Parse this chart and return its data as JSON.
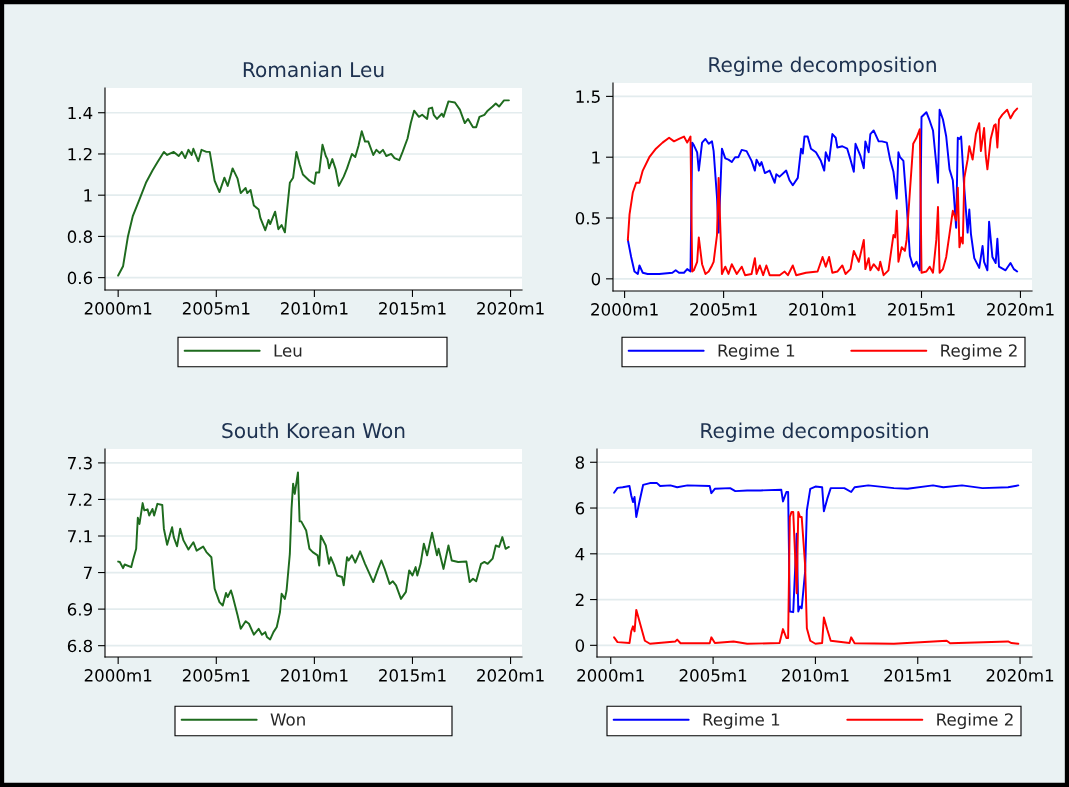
{
  "chart_data": [
    {
      "type": "line",
      "title": "Romanian Leu",
      "xlim": [
        "1999-05",
        "2020-08"
      ],
      "ylim": [
        0.54,
        1.52
      ],
      "xticks": [
        {
          "value": "2000-01",
          "label": "2000m1"
        },
        {
          "value": "2005-01",
          "label": "2005m1"
        },
        {
          "value": "2010-01",
          "label": "2010m1"
        },
        {
          "value": "2015-01",
          "label": "2015m1"
        },
        {
          "value": "2020-01",
          "label": "2020m1"
        }
      ],
      "yticks": [
        0.6,
        0.8,
        1,
        1.2,
        1.4
      ],
      "grid": "y",
      "legend": "bottom",
      "series": [
        {
          "name": "Leu",
          "color": "#1e6b1e",
          "x": [
            "2000-01",
            "2000-04",
            "2000-07",
            "2000-10",
            "2001-02",
            "2001-06",
            "2001-10",
            "2002-01",
            "2002-05",
            "2002-07",
            "2002-11",
            "2003-02",
            "2003-04",
            "2003-06",
            "2003-08",
            "2003-10",
            "2003-11",
            "2004-02",
            "2004-04",
            "2004-07",
            "2004-09",
            "2004-12",
            "2005-03",
            "2005-06",
            "2005-08",
            "2005-11",
            "2006-02",
            "2006-04",
            "2006-07",
            "2006-08",
            "2006-10",
            "2006-12",
            "2007-03",
            "2007-04",
            "2007-07",
            "2007-09",
            "2007-10",
            "2008-01",
            "2008-03",
            "2008-05",
            "2008-07",
            "2008-08",
            "2008-10",
            "2008-12",
            "2009-02",
            "2009-04",
            "2009-06",
            "2009-10",
            "2010-01",
            "2010-02",
            "2010-04",
            "2010-06",
            "2010-08",
            "2010-09",
            "2010-10",
            "2010-12",
            "2011-02",
            "2011-04",
            "2011-07",
            "2011-09",
            "2011-12",
            "2012-02",
            "2012-04",
            "2012-06",
            "2012-08",
            "2012-10",
            "2013-01",
            "2013-03",
            "2013-05",
            "2013-07",
            "2013-09",
            "2013-12",
            "2014-02",
            "2014-05",
            "2014-07",
            "2014-10",
            "2014-12",
            "2015-02",
            "2015-05",
            "2015-07",
            "2015-10",
            "2015-11",
            "2016-01",
            "2016-02",
            "2016-04",
            "2016-07",
            "2016-08",
            "2016-11",
            "2017-03",
            "2017-06",
            "2017-09",
            "2017-11",
            "2018-02",
            "2018-04",
            "2018-06",
            "2018-09",
            "2018-11",
            "2019-02",
            "2019-04",
            "2019-06",
            "2019-09",
            "2019-12"
          ],
          "values": [
            0.61,
            0.655,
            0.8,
            0.9,
            0.98,
            1.06,
            1.12,
            1.16,
            1.21,
            1.195,
            1.21,
            1.19,
            1.21,
            1.18,
            1.22,
            1.195,
            1.225,
            1.165,
            1.22,
            1.21,
            1.21,
            1.07,
            1.015,
            1.085,
            1.045,
            1.13,
            1.08,
            1.01,
            1.035,
            1.01,
            1.025,
            0.95,
            0.93,
            0.89,
            0.83,
            0.88,
            0.86,
            0.92,
            0.835,
            0.855,
            0.82,
            0.905,
            1.06,
            1.085,
            1.21,
            1.15,
            1.1,
            1.07,
            1.055,
            1.11,
            1.11,
            1.245,
            1.19,
            1.175,
            1.13,
            1.175,
            1.125,
            1.045,
            1.09,
            1.13,
            1.2,
            1.185,
            1.24,
            1.31,
            1.26,
            1.26,
            1.195,
            1.22,
            1.205,
            1.22,
            1.19,
            1.2,
            1.18,
            1.17,
            1.21,
            1.275,
            1.35,
            1.41,
            1.38,
            1.39,
            1.37,
            1.42,
            1.425,
            1.39,
            1.37,
            1.395,
            1.38,
            1.455,
            1.45,
            1.415,
            1.35,
            1.37,
            1.33,
            1.33,
            1.38,
            1.39,
            1.41,
            1.43,
            1.445,
            1.43,
            1.46,
            1.46
          ]
        }
      ]
    },
    {
      "type": "line",
      "title": "Regime decomposition",
      "xlim": [
        "1999-06",
        "2020-08"
      ],
      "ylim": [
        -0.1,
        1.61
      ],
      "xticks": [
        {
          "value": "2000-01",
          "label": "2000m1"
        },
        {
          "value": "2005-01",
          "label": "2005m1"
        },
        {
          "value": "2010-01",
          "label": "2010m1"
        },
        {
          "value": "2015-01",
          "label": "2015m1"
        },
        {
          "value": "2020-01",
          "label": "2020m1"
        }
      ],
      "yticks": [
        0,
        0.5,
        1,
        1.5
      ],
      "grid": "y",
      "legend": "bottom",
      "series": [
        {
          "name": "Regime 1",
          "color": "#0000ff",
          "x": [
            "2000-03",
            "2000-05",
            "2000-07",
            "2000-09",
            "2000-10",
            "2000-12",
            "2001-03",
            "2001-10",
            "2002-06",
            "2002-08",
            "2002-10",
            "2003-01",
            "2003-03",
            "2003-05",
            "2003-06",
            "2003-07",
            "2003-09",
            "2003-10",
            "2003-12",
            "2004-02",
            "2004-04",
            "2004-06",
            "2004-07",
            "2004-09",
            "2004-10",
            "2004-12",
            "2005-02",
            "2005-04",
            "2005-06",
            "2005-08",
            "2005-10",
            "2005-12",
            "2006-03",
            "2006-06",
            "2006-08",
            "2006-09",
            "2006-11",
            "2006-12",
            "2007-02",
            "2007-05",
            "2007-08",
            "2007-09",
            "2007-11",
            "2008-03",
            "2008-05",
            "2008-07",
            "2008-10",
            "2008-12",
            "2009-01",
            "2009-02",
            "2009-04",
            "2009-06",
            "2009-09",
            "2009-12",
            "2010-02",
            "2010-03",
            "2010-05",
            "2010-07",
            "2010-09",
            "2010-10",
            "2011-01",
            "2011-04",
            "2011-06",
            "2011-08",
            "2011-09",
            "2011-12",
            "2012-02",
            "2012-03",
            "2012-05",
            "2012-06",
            "2012-08",
            "2012-11",
            "2013-01",
            "2013-04",
            "2013-06",
            "2013-08",
            "2013-10",
            "2013-11",
            "2013-12",
            "2014-02",
            "2014-04",
            "2014-06",
            "2014-08",
            "2014-10",
            "2014-12",
            "2015-01",
            "2015-04",
            "2015-06",
            "2015-08",
            "2015-10",
            "2015-11",
            "2015-12",
            "2016-02",
            "2016-04",
            "2016-06",
            "2016-08",
            "2016-10",
            "2016-11",
            "2016-12",
            "2017-01",
            "2017-03",
            "2017-05",
            "2017-06",
            "2017-07",
            "2017-09",
            "2017-12",
            "2018-02",
            "2018-03",
            "2018-05",
            "2018-06",
            "2018-08",
            "2018-10",
            "2018-11",
            "2018-12",
            "2019-04",
            "2019-07",
            "2019-09",
            "2019-11"
          ],
          "values": [
            0.32,
            0.18,
            0.06,
            0.04,
            0.11,
            0.05,
            0.04,
            0.04,
            0.05,
            0.07,
            0.05,
            0.05,
            0.08,
            0.06,
            1.12,
            1.1,
            1.04,
            0.89,
            1.12,
            1.15,
            1.11,
            1.13,
            1.05,
            0.67,
            0.38,
            1.07,
            0.99,
            0.98,
            0.96,
            1.0,
            1.0,
            1.06,
            1.05,
            0.97,
            0.89,
            0.98,
            0.93,
            0.96,
            0.87,
            0.89,
            0.79,
            0.86,
            0.84,
            0.89,
            0.81,
            0.77,
            0.83,
            1.07,
            1.03,
            1.17,
            1.17,
            1.07,
            1.04,
            0.97,
            0.89,
            1.04,
            0.97,
            1.19,
            1.16,
            1.08,
            1.09,
            1.07,
            0.98,
            0.88,
            1.11,
            1.01,
            0.91,
            1.13,
            1.04,
            1.19,
            1.22,
            1.13,
            1.13,
            1.12,
            0.98,
            0.88,
            0.66,
            1.04,
            1.0,
            0.97,
            0.62,
            0.19,
            0.1,
            0.14,
            0.07,
            1.33,
            1.37,
            1.3,
            1.22,
            0.94,
            0.79,
            1.39,
            1.31,
            1.17,
            0.9,
            0.81,
            0.42,
            1.16,
            1.15,
            1.17,
            0.74,
            0.38,
            0.57,
            0.37,
            0.17,
            0.09,
            0.27,
            0.14,
            0.07,
            0.47,
            0.18,
            0.13,
            0.33,
            0.1,
            0.07,
            0.13,
            0.08,
            0.06
          ]
        },
        {
          "name": "Regime 2",
          "color": "#ff0000",
          "x": [
            "2000-03",
            "2000-04",
            "2000-06",
            "2000-08",
            "2000-10",
            "2000-12",
            "2001-04",
            "2001-08",
            "2001-12",
            "2002-04",
            "2002-07",
            "2002-10",
            "2003-01",
            "2003-03",
            "2003-05",
            "2003-06",
            "2003-07",
            "2003-09",
            "2003-10",
            "2003-12",
            "2004-02",
            "2004-04",
            "2004-06",
            "2004-07",
            "2004-09",
            "2004-10",
            "2004-12",
            "2005-02",
            "2005-04",
            "2005-06",
            "2005-09",
            "2005-12",
            "2006-02",
            "2006-06",
            "2006-08",
            "2006-09",
            "2006-11",
            "2007-01",
            "2007-03",
            "2007-05",
            "2007-11",
            "2008-02",
            "2008-04",
            "2008-07",
            "2008-09",
            "2009-03",
            "2009-10",
            "2010-01",
            "2010-03",
            "2010-05",
            "2010-07",
            "2010-10",
            "2011-01",
            "2011-03",
            "2011-06",
            "2011-08",
            "2011-11",
            "2012-02",
            "2012-03",
            "2012-05",
            "2012-06",
            "2012-08",
            "2012-11",
            "2012-12",
            "2013-02",
            "2013-05",
            "2013-08",
            "2013-09",
            "2013-10",
            "2013-11",
            "2014-01",
            "2014-03",
            "2014-04",
            "2014-06",
            "2014-08",
            "2014-10",
            "2014-12",
            "2015-01",
            "2015-04",
            "2015-06",
            "2015-08",
            "2015-10",
            "2015-11",
            "2015-12",
            "2016-02",
            "2016-04",
            "2016-06",
            "2016-08",
            "2016-10",
            "2016-11",
            "2016-12",
            "2017-01",
            "2017-02",
            "2017-03",
            "2017-05",
            "2017-06",
            "2017-08",
            "2017-10",
            "2017-12",
            "2018-01",
            "2018-03",
            "2018-04",
            "2018-05",
            "2018-07",
            "2018-09",
            "2018-10",
            "2018-11",
            "2018-12",
            "2019-02",
            "2019-05",
            "2019-07",
            "2019-09",
            "2019-11"
          ],
          "values": [
            0.32,
            0.53,
            0.71,
            0.79,
            0.79,
            0.89,
            1.0,
            1.07,
            1.12,
            1.16,
            1.13,
            1.15,
            1.17,
            1.12,
            1.17,
            0.06,
            0.07,
            0.14,
            0.34,
            0.12,
            0.04,
            0.06,
            0.11,
            0.14,
            0.36,
            0.83,
            0.04,
            0.1,
            0.04,
            0.12,
            0.04,
            0.1,
            0.03,
            0.04,
            0.17,
            0.04,
            0.11,
            0.03,
            0.11,
            0.03,
            0.03,
            0.06,
            0.03,
            0.11,
            0.03,
            0.05,
            0.06,
            0.18,
            0.1,
            0.18,
            0.05,
            0.06,
            0.11,
            0.04,
            0.08,
            0.23,
            0.14,
            0.32,
            0.08,
            0.17,
            0.07,
            0.12,
            0.07,
            0.14,
            0.03,
            0.07,
            0.36,
            0.34,
            0.56,
            0.14,
            0.26,
            0.23,
            0.32,
            0.72,
            1.11,
            1.16,
            1.23,
            0.05,
            0.06,
            0.1,
            0.05,
            0.32,
            0.59,
            0.05,
            0.08,
            0.18,
            0.37,
            0.56,
            0.48,
            0.75,
            0.26,
            0.34,
            0.29,
            0.83,
            0.98,
            1.09,
            0.98,
            1.19,
            1.28,
            1.05,
            1.24,
            1.01,
            0.9,
            1.15,
            1.26,
            1.27,
            1.08,
            1.31,
            1.35,
            1.39,
            1.32,
            1.37,
            1.4
          ]
        }
      ]
    },
    {
      "type": "line",
      "title": "South Korean Won",
      "xlim": [
        "1999-05",
        "2020-08"
      ],
      "ylim": [
        6.769,
        7.338
      ],
      "xticks": [
        {
          "value": "2000-01",
          "label": "2000m1"
        },
        {
          "value": "2005-01",
          "label": "2005m1"
        },
        {
          "value": "2010-01",
          "label": "2010m1"
        },
        {
          "value": "2015-01",
          "label": "2015m1"
        },
        {
          "value": "2020-01",
          "label": "2020m1"
        }
      ],
      "yticks": [
        6.8,
        6.9,
        7,
        7.1,
        7.2,
        7.3
      ],
      "grid": "y",
      "legend": "bottom",
      "series": [
        {
          "name": "Won",
          "color": "#1e6b1e",
          "x": [
            "2000-01",
            "2000-02",
            "2000-04",
            "2000-05",
            "2000-09",
            "2000-10",
            "2000-12",
            "2001-01",
            "2001-02",
            "2001-04",
            "2001-05",
            "2001-07",
            "2001-08",
            "2001-10",
            "2001-11",
            "2002-01",
            "2002-04",
            "2002-05",
            "2002-07",
            "2002-10",
            "2002-11",
            "2003-01",
            "2003-03",
            "2003-05",
            "2003-08",
            "2003-11",
            "2004-01",
            "2004-05",
            "2004-07",
            "2004-10",
            "2004-12",
            "2005-03",
            "2005-05",
            "2005-07",
            "2005-08",
            "2005-10",
            "2005-11",
            "2006-02",
            "2006-04",
            "2006-07",
            "2006-09",
            "2006-12",
            "2007-03",
            "2007-05",
            "2007-07",
            "2007-08",
            "2007-10",
            "2007-12",
            "2008-02",
            "2008-04",
            "2008-05",
            "2008-07",
            "2008-08",
            "2008-10",
            "2008-11",
            "2008-12",
            "2009-01",
            "2009-03",
            "2009-04",
            "2009-05",
            "2009-08",
            "2009-10",
            "2009-12",
            "2010-03",
            "2010-04",
            "2010-05",
            "2010-08",
            "2010-10",
            "2010-11",
            "2011-01",
            "2011-03",
            "2011-06",
            "2011-07",
            "2011-09",
            "2011-10",
            "2011-12",
            "2012-02",
            "2012-05",
            "2012-08",
            "2013-01",
            "2013-04",
            "2013-06",
            "2013-08",
            "2013-11",
            "2014-01",
            "2014-03",
            "2014-06",
            "2014-09",
            "2014-11",
            "2015-01",
            "2015-03",
            "2015-04",
            "2015-06",
            "2015-08",
            "2015-10",
            "2016-01",
            "2016-04",
            "2016-05",
            "2016-08",
            "2016-11",
            "2017-01",
            "2017-05",
            "2017-10",
            "2017-12",
            "2018-02",
            "2018-04",
            "2018-07",
            "2018-09",
            "2018-11",
            "2019-02",
            "2019-04",
            "2019-06",
            "2019-08",
            "2019-10",
            "2019-12"
          ],
          "values": [
            7.03,
            7.029,
            7.012,
            7.022,
            7.015,
            7.033,
            7.065,
            7.15,
            7.133,
            7.19,
            7.17,
            7.173,
            7.156,
            7.174,
            7.156,
            7.188,
            7.185,
            7.12,
            7.076,
            7.124,
            7.097,
            7.072,
            7.12,
            7.088,
            7.063,
            7.083,
            7.06,
            7.071,
            7.056,
            7.042,
            6.956,
            6.919,
            6.91,
            6.944,
            6.933,
            6.951,
            6.936,
            6.883,
            6.846,
            6.867,
            6.86,
            6.83,
            6.846,
            6.83,
            6.837,
            6.824,
            6.817,
            6.837,
            6.851,
            6.892,
            6.942,
            6.928,
            6.951,
            7.051,
            7.174,
            7.243,
            7.215,
            7.274,
            7.14,
            7.14,
            7.115,
            7.065,
            7.056,
            7.047,
            7.019,
            7.101,
            7.074,
            7.024,
            7.042,
            7.021,
            6.992,
            6.988,
            6.965,
            7.042,
            7.033,
            7.047,
            7.027,
            7.058,
            7.024,
            6.974,
            7.01,
            7.033,
            7.01,
            6.969,
            6.976,
            6.965,
            6.928,
            6.947,
            7.006,
            6.992,
            7.015,
            6.992,
            7.024,
            7.079,
            7.047,
            7.109,
            7.047,
            7.065,
            7.01,
            7.074,
            7.033,
            7.029,
            7.03,
            6.974,
            6.983,
            6.976,
            7.024,
            7.029,
            7.024,
            7.038,
            7.074,
            7.07,
            7.097,
            7.065,
            7.07
          ]
        }
      ]
    },
    {
      "type": "line",
      "title": "Regime decomposition",
      "xlim": [
        "1999-05",
        "2020-08"
      ],
      "ylim": [
        -0.51,
        8.58
      ],
      "xticks": [
        {
          "value": "2000-01",
          "label": "2000m1"
        },
        {
          "value": "2005-01",
          "label": "2005m1"
        },
        {
          "value": "2010-01",
          "label": "2010m1"
        },
        {
          "value": "2015-01",
          "label": "2015m1"
        },
        {
          "value": "2020-01",
          "label": "2020m1"
        }
      ],
      "yticks": [
        0,
        2,
        4,
        6,
        8
      ],
      "grid": "y",
      "legend": "bottom",
      "series": [
        {
          "name": "Regime 1",
          "color": "#0000ff",
          "x": [
            "2000-03",
            "2000-05",
            "2000-08",
            "2000-12",
            "2001-01",
            "2001-02",
            "2001-03",
            "2001-04",
            "2001-06",
            "2001-08",
            "2001-12",
            "2002-04",
            "2002-06",
            "2002-12",
            "2003-04",
            "2003-10",
            "2004-11",
            "2004-12",
            "2005-02",
            "2005-11",
            "2006-02",
            "2006-09",
            "2007-05",
            "2008-05",
            "2008-06",
            "2008-08",
            "2008-09",
            "2008-10",
            "2008-12",
            "2009-02",
            "2009-03",
            "2009-04",
            "2009-05",
            "2009-07",
            "2009-08",
            "2009-10",
            "2010-01",
            "2010-05",
            "2010-06",
            "2010-08",
            "2010-10",
            "2011-06",
            "2011-10",
            "2011-12",
            "2012-08",
            "2013-11",
            "2014-07",
            "2015-10",
            "2016-04",
            "2017-03",
            "2018-03",
            "2019-06",
            "2019-12"
          ],
          "values": [
            6.67,
            6.88,
            6.91,
            6.96,
            6.55,
            6.26,
            6.48,
            5.61,
            6.33,
            7.01,
            7.09,
            7.1,
            6.96,
            6.99,
            6.91,
            6.99,
            6.96,
            6.65,
            6.84,
            6.87,
            6.74,
            6.77,
            6.77,
            6.8,
            6.29,
            6.7,
            6.7,
            1.48,
            1.45,
            4.88,
            1.48,
            1.7,
            1.62,
            3.22,
            5.9,
            6.84,
            6.94,
            6.91,
            5.86,
            6.41,
            6.87,
            6.87,
            6.7,
            6.91,
            6.99,
            6.87,
            6.84,
            6.99,
            6.91,
            6.99,
            6.87,
            6.91,
            6.99
          ]
        },
        {
          "name": "Regime 2",
          "color": "#ff0000",
          "x": [
            "2000-03",
            "2000-05",
            "2000-12",
            "2001-01",
            "2001-02",
            "2001-03",
            "2001-04",
            "2001-07",
            "2001-09",
            "2001-12",
            "2003-03",
            "2003-04",
            "2003-06",
            "2004-11",
            "2004-12",
            "2005-02",
            "2006-01",
            "2006-09",
            "2008-04",
            "2008-06",
            "2008-08",
            "2008-09",
            "2008-10",
            "2008-11",
            "2008-12",
            "2009-02",
            "2009-03",
            "2009-04",
            "2009-05",
            "2009-07",
            "2009-08",
            "2009-10",
            "2010-01",
            "2010-05",
            "2010-06",
            "2010-08",
            "2010-10",
            "2011-09",
            "2011-10",
            "2011-12",
            "2013-11",
            "2016-06",
            "2016-08",
            "2019-06",
            "2019-08",
            "2019-12"
          ],
          "values": [
            0.35,
            0.14,
            0.1,
            0.61,
            0.83,
            0.61,
            1.55,
            0.75,
            0.2,
            0.07,
            0.17,
            0.25,
            0.09,
            0.09,
            0.35,
            0.1,
            0.17,
            0.07,
            0.1,
            0.71,
            0.32,
            0.32,
            5.61,
            5.83,
            5.83,
            2.28,
            5.83,
            5.61,
            5.61,
            3.51,
            0.75,
            0.2,
            0.07,
            0.1,
            1.22,
            0.68,
            0.2,
            0.1,
            0.35,
            0.09,
            0.07,
            0.2,
            0.09,
            0.17,
            0.1,
            0.07
          ]
        }
      ]
    }
  ]
}
